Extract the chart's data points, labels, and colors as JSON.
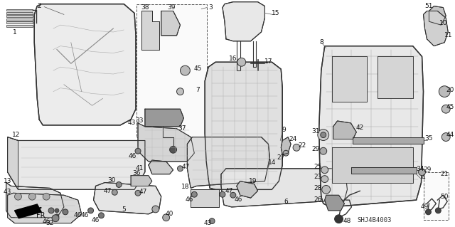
{
  "background_color": "#ffffff",
  "diagram_code": "SHJ4B4003",
  "fig_width": 6.4,
  "fig_height": 3.19,
  "dpi": 100,
  "label_fontsize": 6.5,
  "label_color": "#111111",
  "line_color": "#333333",
  "light_fill": "#f0f0f0",
  "medium_fill": "#e0e0e0",
  "dark_fill": "#c0c0c0"
}
